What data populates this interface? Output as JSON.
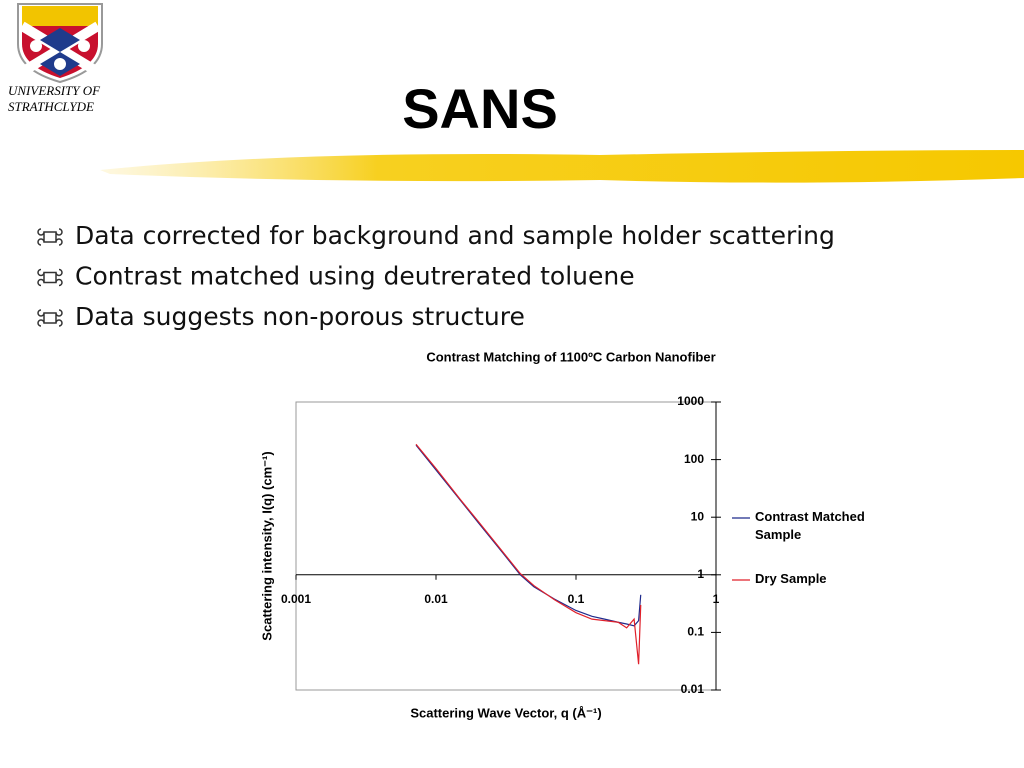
{
  "header": {
    "title": "SANS",
    "logo_lines": [
      "UNIVERSITY OF",
      "STRATHCLYDE"
    ]
  },
  "bullets": [
    "Data corrected for background and sample holder scattering",
    "Contrast matched using deutrerated toluene",
    "Data suggests non-porous structure"
  ],
  "chart_data": {
    "type": "line",
    "title": "Contrast Matching of 1100ºC Carbon Nanofiber",
    "x_label": "Scattering Wave Vector, q (Å⁻¹)",
    "y_label": "Scattering intensity, I(q) (cm⁻¹)",
    "x": [
      0.0072,
      0.01,
      0.015,
      0.02,
      0.03,
      0.04,
      0.05,
      0.07,
      0.1,
      0.13,
      0.16,
      0.2,
      0.23,
      0.26,
      0.28,
      0.29
    ],
    "series": [
      {
        "name": "Contrast Matched Sample",
        "color": "#1f2a8c",
        "values": [
          178,
          66,
          19.4,
          8.1,
          2.4,
          1.0,
          0.62,
          0.38,
          0.24,
          0.19,
          0.17,
          0.15,
          0.14,
          0.13,
          0.16,
          0.45
        ]
      },
      {
        "name": "Dry Sample",
        "color": "#e0202a",
        "values": [
          185,
          70,
          20,
          8.5,
          2.5,
          1.05,
          0.65,
          0.37,
          0.22,
          0.17,
          0.16,
          0.15,
          0.12,
          0.17,
          0.028,
          0.3
        ]
      }
    ],
    "xlim": [
      0.001,
      1
    ],
    "ylim": [
      0.01,
      1000
    ],
    "xticks": [
      0.001,
      0.01,
      0.1,
      1
    ],
    "yticks": [
      0.01,
      0.1,
      1,
      10,
      100,
      1000
    ],
    "xlog": true,
    "ylog": true,
    "legend": "right"
  }
}
